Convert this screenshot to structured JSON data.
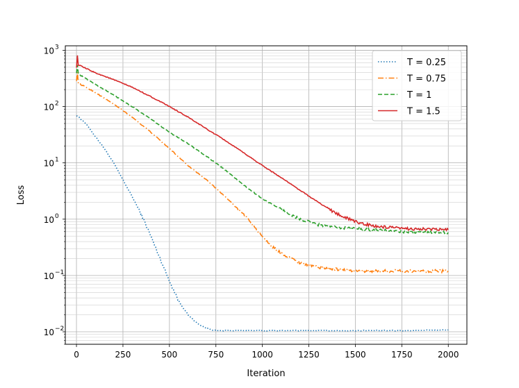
{
  "chart_data": {
    "type": "line",
    "title": "",
    "xlabel": "Iteration",
    "ylabel": "Loss",
    "xlim": [
      -60,
      2100
    ],
    "ylim": [
      0.006,
      1200
    ],
    "yscale": "log",
    "grid": true,
    "grid_minor": true,
    "legend_position": "top-right",
    "x_ticks": [
      0,
      250,
      500,
      750,
      1000,
      1250,
      1500,
      1750,
      2000
    ],
    "x_tick_labels": [
      "0",
      "250",
      "500",
      "750",
      "1000",
      "1250",
      "1500",
      "1750",
      "2000"
    ],
    "y_ticks": [
      0.01,
      0.1,
      1,
      10,
      100,
      1000
    ],
    "y_tick_exponents": [
      "−2",
      "−1",
      "0",
      "1",
      "2",
      "3"
    ],
    "y_tick_base": "10",
    "series": [
      {
        "name": "T =  0.25",
        "color": "#1f77b4",
        "dash": "dotted",
        "x": [
          0,
          50,
          100,
          150,
          200,
          250,
          300,
          350,
          400,
          450,
          500,
          550,
          600,
          650,
          700,
          750,
          800,
          1000,
          1250,
          1500,
          1750,
          2000
        ],
        "y": [
          70,
          50,
          30,
          18,
          10,
          5,
          2.5,
          1.2,
          0.5,
          0.2,
          0.08,
          0.035,
          0.02,
          0.014,
          0.0115,
          0.0105,
          0.0105,
          0.0105,
          0.0105,
          0.0105,
          0.0105,
          0.0108
        ]
      },
      {
        "name": "T =  0.75",
        "color": "#ff7f0e",
        "dash": "dashdot",
        "x": [
          0,
          5,
          10,
          100,
          200,
          300,
          400,
          500,
          600,
          700,
          800,
          900,
          1000,
          1050,
          1100,
          1200,
          1300,
          1400,
          1500,
          1750,
          2000
        ],
        "y": [
          290,
          400,
          260,
          180,
          110,
          65,
          35,
          18,
          9,
          5,
          2.5,
          1.2,
          0.5,
          0.33,
          0.25,
          0.17,
          0.14,
          0.13,
          0.12,
          0.12,
          0.12
        ]
      },
      {
        "name": "T =  1",
        "color": "#2ca02c",
        "dash": "dashed",
        "x": [
          0,
          5,
          10,
          100,
          200,
          300,
          400,
          500,
          600,
          700,
          800,
          900,
          1000,
          1100,
          1200,
          1300,
          1400,
          1500,
          1750,
          2000
        ],
        "y": [
          400,
          550,
          380,
          250,
          160,
          100,
          60,
          35,
          22,
          13,
          7.5,
          4,
          2.3,
          1.5,
          1.0,
          0.8,
          0.72,
          0.68,
          0.6,
          0.58
        ]
      },
      {
        "name": "T =  1.5",
        "color": "#d62728",
        "dash": "solid",
        "x": [
          0,
          5,
          10,
          100,
          200,
          300,
          400,
          500,
          600,
          700,
          800,
          900,
          1000,
          1100,
          1200,
          1300,
          1400,
          1500,
          1600,
          1750,
          2000
        ],
        "y": [
          500,
          800,
          550,
          400,
          300,
          220,
          150,
          100,
          65,
          40,
          25,
          15,
          9,
          5.5,
          3.3,
          2.0,
          1.25,
          0.9,
          0.75,
          0.68,
          0.65
        ]
      }
    ]
  }
}
